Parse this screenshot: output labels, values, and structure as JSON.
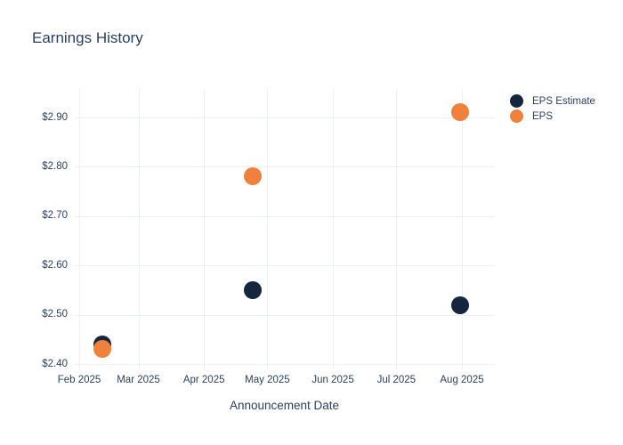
{
  "chart_data": {
    "type": "scatter",
    "title": "Earnings History",
    "xlabel": "Announcement Date",
    "ylabel": "",
    "grid": true,
    "legend_position": "top-right-outside",
    "x_axis_type": "date",
    "x_range": [
      "2025-01-29",
      "2025-08-17"
    ],
    "y_range": [
      2.389,
      2.957
    ],
    "x_ticks": [
      {
        "label": "Feb 2025",
        "date": "2025-02-01"
      },
      {
        "label": "Mar 2025",
        "date": "2025-03-01"
      },
      {
        "label": "Apr 2025",
        "date": "2025-04-01"
      },
      {
        "label": "May 2025",
        "date": "2025-05-01"
      },
      {
        "label": "Jun 2025",
        "date": "2025-06-01"
      },
      {
        "label": "Jul 2025",
        "date": "2025-07-01"
      },
      {
        "label": "Aug 2025",
        "date": "2025-08-01"
      }
    ],
    "y_ticks": [
      {
        "label": "$2.40",
        "value": 2.4
      },
      {
        "label": "$2.50",
        "value": 2.5
      },
      {
        "label": "$2.60",
        "value": 2.6
      },
      {
        "label": "$2.70",
        "value": 2.7
      },
      {
        "label": "$2.80",
        "value": 2.8
      },
      {
        "label": "$2.90",
        "value": 2.9
      }
    ],
    "series": [
      {
        "name": "EPS Estimate",
        "color": "#16263f",
        "points": [
          {
            "x": "2025-02-12",
            "y": 2.44
          },
          {
            "x": "2025-04-24",
            "y": 2.55
          },
          {
            "x": "2025-07-31",
            "y": 2.52
          }
        ]
      },
      {
        "name": "EPS",
        "color": "#f0813c",
        "points": [
          {
            "x": "2025-02-12",
            "y": 2.43
          },
          {
            "x": "2025-04-24",
            "y": 2.78
          },
          {
            "x": "2025-07-31",
            "y": 2.91
          }
        ]
      }
    ],
    "colors": {
      "title_text": "#2a3f5f",
      "tick_text": "#2a3f5f",
      "gridline": "#edf0f8",
      "background": "#ffffff"
    }
  }
}
